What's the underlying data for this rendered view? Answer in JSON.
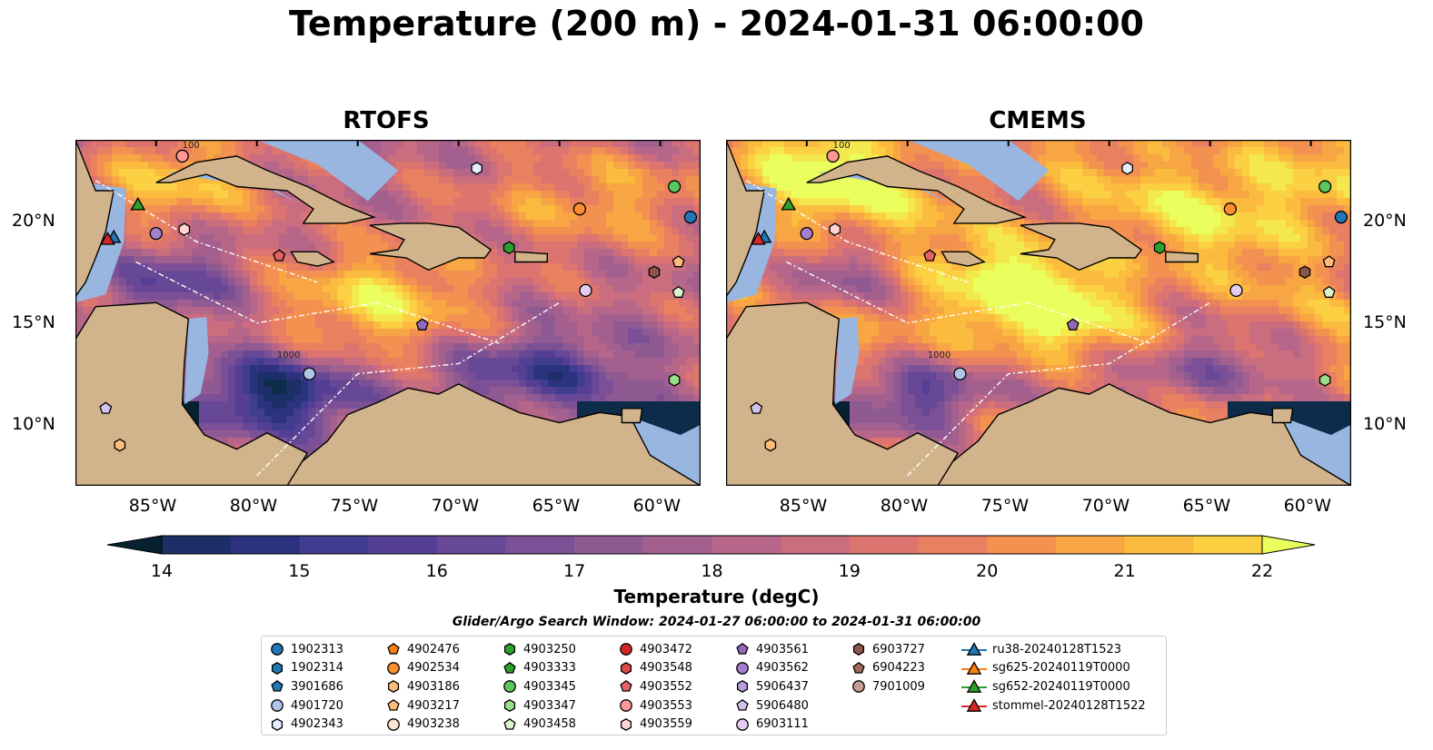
{
  "title": "Temperature (200 m) - 2024-01-31 06:00:00",
  "panels": [
    {
      "title": "RTOFS"
    },
    {
      "title": "CMEMS"
    }
  ],
  "colors": {
    "land": "#d1b48c",
    "shelf_water": "#98b6e0",
    "colormap": [
      "#062230",
      "#0d2c4a",
      "#1c2f66",
      "#2b327e",
      "#3f3d8f",
      "#553f95",
      "#674896",
      "#7b5096",
      "#8f5a92",
      "#a3608e",
      "#b66689",
      "#c96d7f",
      "#dc7470",
      "#e98161",
      "#f39150",
      "#f8a544",
      "#fbbb3f",
      "#fbd043",
      "#f3e84d",
      "#eaff5e"
    ]
  },
  "chart_data": {
    "type": "heatmap",
    "variable": "Temperature",
    "depth": "200 m",
    "datetime": "2024-01-31 06:00:00",
    "x_ticks": [
      "85°W",
      "80°W",
      "75°W",
      "70°W",
      "65°W",
      "60°W"
    ],
    "x_tick_values": [
      -85,
      -80,
      -75,
      -70,
      -65,
      -60
    ],
    "y_ticks": [
      "20°N",
      "15°N",
      "10°N"
    ],
    "y_tick_values": [
      20,
      15,
      10
    ],
    "xlim": [
      -89,
      -58
    ],
    "ylim": [
      7,
      24
    ],
    "contour_labels": [
      "100",
      "1000"
    ],
    "colorbar": {
      "label": "Temperature (degC)",
      "ticks": [
        14,
        15,
        16,
        17,
        18,
        19,
        20,
        21,
        22
      ],
      "range": [
        14,
        22
      ],
      "extend": "both"
    },
    "search_window": "Glider/Argo Search Window: 2024-01-27 06:00:00 to 2024-01-31 06:00:00",
    "legend": [
      {
        "label": "1902313",
        "marker": "circle",
        "color": "#1f77b4"
      },
      {
        "label": "1902314",
        "marker": "hexagon",
        "color": "#1f77b4"
      },
      {
        "label": "3901686",
        "marker": "pentagon",
        "color": "#1f77b4"
      },
      {
        "label": "4901720",
        "marker": "circle",
        "color": "#aec7e8"
      },
      {
        "label": "4902343",
        "marker": "hexagon",
        "color": "#e4eefc"
      },
      {
        "label": "4902476",
        "marker": "pentagon",
        "color": "#ff7f0e"
      },
      {
        "label": "4902534",
        "marker": "circle",
        "color": "#ff8c2e"
      },
      {
        "label": "4903186",
        "marker": "hexagon",
        "color": "#ffbb78"
      },
      {
        "label": "4903217",
        "marker": "pentagon",
        "color": "#ffbb78"
      },
      {
        "label": "4903238",
        "marker": "circle",
        "color": "#ffe4cc"
      },
      {
        "label": "4903250",
        "marker": "hexagon",
        "color": "#2ca02c"
      },
      {
        "label": "4903333",
        "marker": "pentagon",
        "color": "#2ca02c"
      },
      {
        "label": "4903345",
        "marker": "circle",
        "color": "#5ac85a"
      },
      {
        "label": "4903347",
        "marker": "hexagon",
        "color": "#98df8a"
      },
      {
        "label": "4903458",
        "marker": "pentagon",
        "color": "#d9f5d0"
      },
      {
        "label": "4903472",
        "marker": "circle",
        "color": "#d62728"
      },
      {
        "label": "4903548",
        "marker": "hexagon",
        "color": "#e04848"
      },
      {
        "label": "4903552",
        "marker": "pentagon",
        "color": "#e36363"
      },
      {
        "label": "4903553",
        "marker": "circle",
        "color": "#ff9896"
      },
      {
        "label": "4903559",
        "marker": "hexagon",
        "color": "#ffd4d2"
      },
      {
        "label": "4903561",
        "marker": "pentagon",
        "color": "#9467bd"
      },
      {
        "label": "4903562",
        "marker": "circle",
        "color": "#a47fd0"
      },
      {
        "label": "5906437",
        "marker": "hexagon",
        "color": "#b89ddb"
      },
      {
        "label": "5906480",
        "marker": "pentagon",
        "color": "#d2c2ec"
      },
      {
        "label": "6903111",
        "marker": "circle",
        "color": "#e6ccf2"
      },
      {
        "label": "6903727",
        "marker": "hexagon",
        "color": "#8c564b"
      },
      {
        "label": "6904223",
        "marker": "pentagon",
        "color": "#a06a5c"
      },
      {
        "label": "7901009",
        "marker": "circle",
        "color": "#c49c94"
      },
      {
        "label": "ru38-20240128T1523",
        "marker": "triangle-line",
        "color": "#1f77b4"
      },
      {
        "label": "sg625-20240119T0000",
        "marker": "triangle-line",
        "color": "#ff7f0e"
      },
      {
        "label": "sg652-20240119T0000",
        "marker": "triangle-line",
        "color": "#2ca02c"
      },
      {
        "label": "stommel-20240128T1522",
        "marker": "triangle-line",
        "color": "#d62728"
      }
    ],
    "markers": [
      {
        "id": "1902313",
        "lon": -58.5,
        "lat": 20.2
      },
      {
        "id": "4903345",
        "lon": -59.3,
        "lat": 21.7
      },
      {
        "id": "4902534",
        "lon": -64.0,
        "lat": 20.6
      },
      {
        "id": "4903250",
        "lon": -67.5,
        "lat": 18.7
      },
      {
        "id": "6903727",
        "lon": -60.3,
        "lat": 17.5
      },
      {
        "id": "4903217",
        "lon": -59.1,
        "lat": 18.0
      },
      {
        "id": "4903458",
        "lon": -59.1,
        "lat": 16.5
      },
      {
        "id": "6903111",
        "lon": -63.7,
        "lat": 16.6
      },
      {
        "id": "4903347",
        "lon": -59.3,
        "lat": 12.2
      },
      {
        "id": "4903561",
        "lon": -71.8,
        "lat": 14.9
      },
      {
        "id": "4901720",
        "lon": -77.4,
        "lat": 12.5
      },
      {
        "id": "4903552",
        "lon": -78.9,
        "lat": 18.3
      },
      {
        "id": "4903559",
        "lon": -83.6,
        "lat": 19.6
      },
      {
        "id": "4903562",
        "lon": -85.0,
        "lat": 19.4
      },
      {
        "id": "4903553",
        "lon": -83.7,
        "lat": 23.2
      },
      {
        "id": "4902343",
        "lon": -69.1,
        "lat": 22.6
      },
      {
        "id": "4903186",
        "lon": -86.8,
        "lat": 9.0
      },
      {
        "id": "5906480",
        "lon": -87.5,
        "lat": 10.8
      },
      {
        "id": "sg652-20240119T0000",
        "lon": -85.9,
        "lat": 20.8
      },
      {
        "id": "ru38-20240128T1523",
        "lon": -87.1,
        "lat": 19.2
      },
      {
        "id": "stommel-20240128T1522",
        "lon": -87.4,
        "lat": 19.1
      }
    ]
  }
}
